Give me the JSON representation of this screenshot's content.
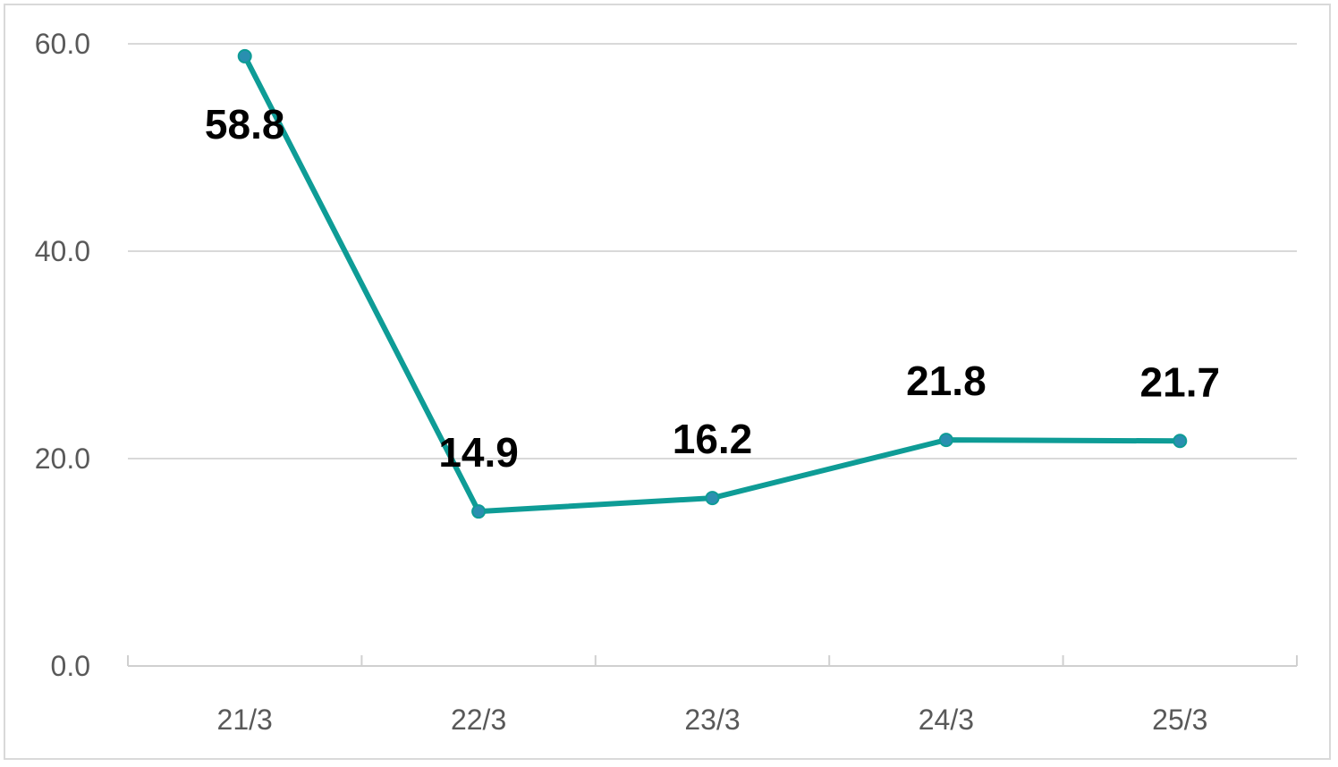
{
  "chart_data": {
    "type": "line",
    "categories": [
      "21/3",
      "22/3",
      "23/3",
      "24/3",
      "25/3"
    ],
    "series": [
      {
        "values": [
          58.8,
          14.9,
          16.2,
          21.8,
          21.7
        ],
        "color": "#0e9c96",
        "marker_color": "#2a8fb0"
      }
    ],
    "data_labels": [
      "58.8",
      "14.9",
      "16.2",
      "21.8",
      "21.7"
    ],
    "y_tick_labels": [
      "0.0",
      "20.0",
      "40.0",
      "60.0"
    ],
    "y_ticks": [
      0,
      20,
      40,
      60
    ],
    "ylim": [
      0,
      60
    ],
    "title": "",
    "xlabel": "",
    "ylabel": "",
    "grid": true,
    "legend": "none",
    "colors": {
      "grid": "#d9d9d9",
      "axis": "#d0d0d0",
      "tick_text": "#595959",
      "label_text": "#000000"
    }
  }
}
